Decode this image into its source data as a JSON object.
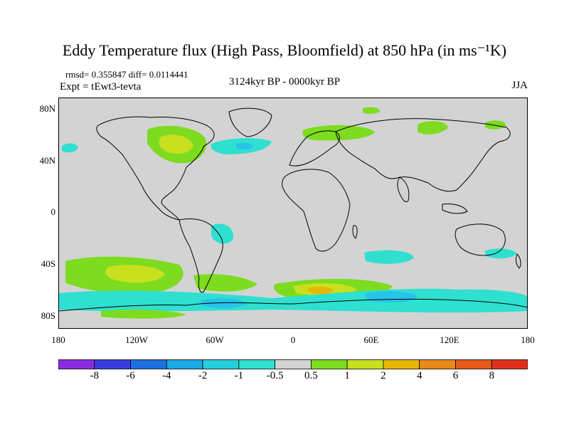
{
  "title": "Eddy Temperature flux (High Pass, Bloomfield) at 850 hPa (in ms⁻¹K)",
  "stats": "rmsd= 0.355847 diff= 0.0114441",
  "experiment": "Expt = tEwt3-tevta",
  "period": "3124kyr BP - 0000kyr BP",
  "season": "JJA",
  "lat_labels": [
    "80N",
    "40N",
    "0",
    "40S",
    "80S"
  ],
  "lon_labels": [
    "180",
    "120W",
    "60W",
    "0",
    "60E",
    "120E",
    "180"
  ],
  "colorbar": {
    "labels": [
      "-8",
      "-6",
      "-4",
      "-2",
      "-1",
      "-0.5",
      "0.5",
      "1",
      "2",
      "4",
      "6",
      "8"
    ],
    "colors": [
      "#8a2be2",
      "#3a3ae0",
      "#1e6fe0",
      "#1aa8e6",
      "#26d0e0",
      "#2fe0d0",
      "#d3d3d3",
      "#7ddc1f",
      "#c8e01e",
      "#e6b800",
      "#e88a1a",
      "#e85a1a",
      "#e0301a"
    ]
  },
  "colors": {
    "land_bg": "#d3d3d3",
    "pos_weak": "#7ddc1f",
    "pos_mid": "#c8e01e",
    "pos_strong": "#e6b800",
    "neg_weak": "#2fe0d0",
    "neg_mid": "#26c4e8"
  }
}
